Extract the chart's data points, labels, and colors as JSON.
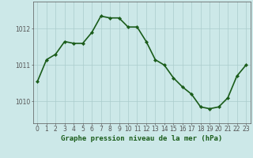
{
  "x": [
    0,
    1,
    2,
    3,
    4,
    5,
    6,
    7,
    8,
    9,
    10,
    11,
    12,
    13,
    14,
    15,
    16,
    17,
    18,
    19,
    20,
    21,
    22,
    23
  ],
  "y": [
    1010.55,
    1011.15,
    1011.3,
    1011.65,
    1011.6,
    1011.6,
    1011.9,
    1012.35,
    1012.3,
    1012.3,
    1012.05,
    1012.05,
    1011.65,
    1011.15,
    1011.0,
    1010.65,
    1010.4,
    1010.2,
    1009.85,
    1009.8,
    1009.85,
    1010.1,
    1010.7,
    1011.0
  ],
  "line_color": "#1a5c1a",
  "marker": "D",
  "marker_size": 2.2,
  "bg_color": "#cce8e8",
  "grid_color": "#aacccc",
  "xlabel": "Graphe pression niveau de la mer (hPa)",
  "xlabel_fontsize": 6.5,
  "ytick_labels": [
    "1010",
    "1011",
    "1012"
  ],
  "ytick_values": [
    1010,
    1011,
    1012
  ],
  "ylim": [
    1009.4,
    1012.75
  ],
  "xlim": [
    -0.5,
    23.5
  ],
  "xtick_labels": [
    "0",
    "1",
    "2",
    "3",
    "4",
    "5",
    "6",
    "7",
    "8",
    "9",
    "10",
    "11",
    "12",
    "13",
    "14",
    "15",
    "16",
    "17",
    "18",
    "19",
    "20",
    "21",
    "22",
    "23"
  ],
  "title_color": "#1a5c1a",
  "axis_color": "#555555",
  "linewidth": 1.2,
  "tick_fontsize": 5.5
}
